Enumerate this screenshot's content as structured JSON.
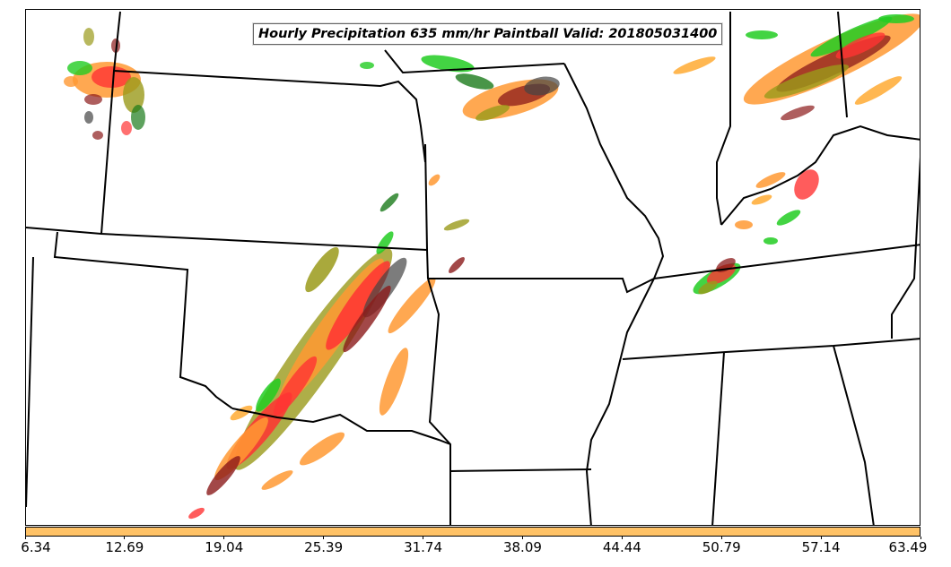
{
  "title": "Hourly Precipitation 635 mm/hr Paintball Valid: 201805031400",
  "colorbar": {
    "color": "#ffc266",
    "ticks": [
      "6.34",
      "12.69",
      "19.04",
      "25.39",
      "31.74",
      "38.09",
      "44.44",
      "50.79",
      "57.14",
      "63.49"
    ]
  },
  "paintball_colors": [
    "#ff9933",
    "#ff3333",
    "#22cc22",
    "#8b1a1a",
    "#9a9a1a",
    "#444444",
    "#1a7a1a",
    "#ffaa33"
  ]
}
